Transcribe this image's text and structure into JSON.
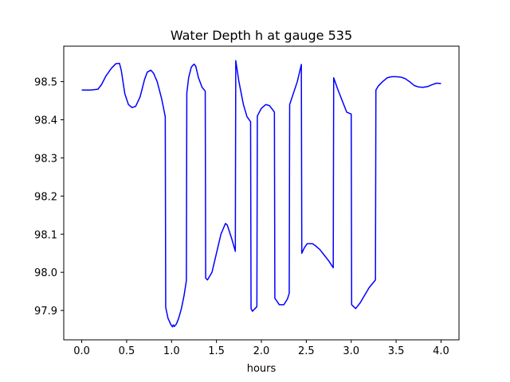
{
  "chart_data": {
    "type": "line",
    "title": "Water Depth h at gauge 535",
    "xlabel": "hours",
    "ylabel": "",
    "xlim": [
      -0.2,
      4.2
    ],
    "ylim": [
      97.823,
      98.593
    ],
    "xticks": [
      0.0,
      0.5,
      1.0,
      1.5,
      2.0,
      2.5,
      3.0,
      3.5,
      4.0
    ],
    "xtick_labels": [
      "0.0",
      "0.5",
      "1.0",
      "1.5",
      "2.0",
      "2.5",
      "3.0",
      "3.5",
      "4.0"
    ],
    "yticks": [
      97.9,
      98.0,
      98.1,
      98.2,
      98.3,
      98.4,
      98.5
    ],
    "ytick_labels": [
      "97.9",
      "98.0",
      "98.1",
      "98.2",
      "98.3",
      "98.4",
      "98.5"
    ],
    "grid": false,
    "series": [
      {
        "color": "#0000ff",
        "x": [
          0.0,
          0.1,
          0.18,
          0.22,
          0.27,
          0.33,
          0.38,
          0.42,
          0.44,
          0.48,
          0.52,
          0.56,
          0.6,
          0.65,
          0.7,
          0.73,
          0.77,
          0.8,
          0.84,
          0.89,
          0.93,
          0.935,
          0.96,
          0.99,
          1.01,
          1.02,
          1.03,
          1.04,
          1.05,
          1.06,
          1.08,
          1.11,
          1.14,
          1.165,
          1.17,
          1.19,
          1.22,
          1.25,
          1.27,
          1.3,
          1.34,
          1.375,
          1.38,
          1.4,
          1.45,
          1.5,
          1.55,
          1.6,
          1.62,
          1.64,
          1.67,
          1.71,
          1.715,
          1.75,
          1.8,
          1.84,
          1.88,
          1.885,
          1.9,
          1.93,
          1.95,
          1.955,
          2.0,
          2.05,
          2.09,
          2.12,
          2.145,
          2.15,
          2.2,
          2.25,
          2.29,
          2.31,
          2.315,
          2.4,
          2.445,
          2.45,
          2.48,
          2.51,
          2.54,
          2.57,
          2.6,
          2.65,
          2.7,
          2.75,
          2.8,
          2.805,
          2.85,
          2.9,
          2.95,
          3.0,
          3.005,
          3.05,
          3.1,
          3.15,
          3.2,
          3.27,
          3.275,
          3.3,
          3.35,
          3.4,
          3.45,
          3.5,
          3.55,
          3.6,
          3.65,
          3.7,
          3.75,
          3.8,
          3.85,
          3.9,
          3.95,
          4.0
        ],
        "y": [
          98.478,
          98.478,
          98.48,
          98.492,
          98.515,
          98.535,
          98.547,
          98.548,
          98.53,
          98.468,
          98.44,
          98.432,
          98.435,
          98.46,
          98.506,
          98.525,
          98.53,
          98.522,
          98.5,
          98.455,
          98.408,
          97.908,
          97.88,
          97.864,
          97.857,
          97.862,
          97.858,
          97.861,
          97.863,
          97.868,
          97.88,
          97.905,
          97.94,
          97.978,
          98.47,
          98.51,
          98.538,
          98.546,
          98.54,
          98.51,
          98.485,
          98.475,
          97.985,
          97.98,
          98.0,
          98.05,
          98.1,
          98.128,
          98.124,
          98.11,
          98.088,
          98.055,
          98.555,
          98.5,
          98.44,
          98.408,
          98.395,
          97.905,
          97.898,
          97.905,
          97.91,
          98.41,
          98.43,
          98.44,
          98.437,
          98.428,
          98.42,
          97.932,
          97.915,
          97.915,
          97.93,
          97.945,
          98.44,
          98.5,
          98.545,
          98.05,
          98.065,
          98.075,
          98.075,
          98.075,
          98.07,
          98.06,
          98.045,
          98.03,
          98.012,
          98.51,
          98.48,
          98.45,
          98.42,
          98.415,
          97.915,
          97.905,
          97.92,
          97.94,
          97.96,
          97.98,
          98.478,
          98.488,
          98.5,
          98.51,
          98.513,
          98.513,
          98.512,
          98.508,
          98.5,
          98.49,
          98.486,
          98.485,
          98.487,
          98.492,
          98.496,
          98.495
        ]
      }
    ]
  }
}
